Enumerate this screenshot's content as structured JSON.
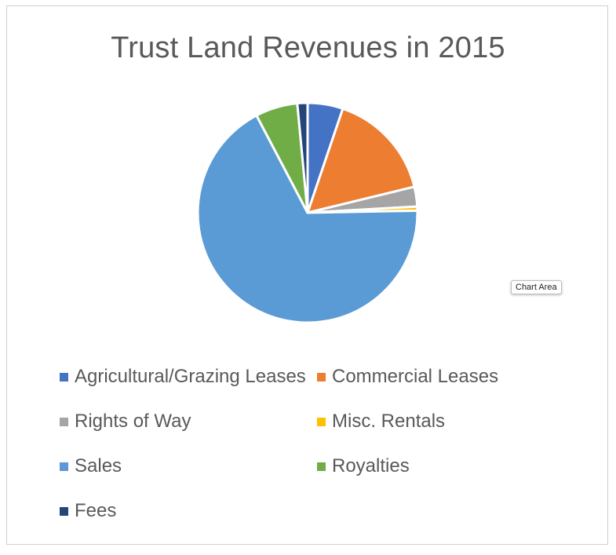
{
  "tooltip": "Chart Area",
  "chart_data": {
    "type": "pie",
    "title": "Trust Land Revenues in 2015",
    "legend_position": "bottom",
    "categories": [
      "Agricultural/Grazing Leases",
      "Commercial Leases",
      "Rights of Way",
      "Misc. Rentals",
      "Sales",
      "Royalties",
      "Fees"
    ],
    "values": [
      5.2,
      16.0,
      2.9,
      0.6,
      67.6,
      6.2,
      1.5
    ],
    "colors": [
      "#4472C4",
      "#ED7D31",
      "#A5A5A5",
      "#FFC000",
      "#5B9BD5",
      "#70AD47",
      "#264478"
    ]
  }
}
